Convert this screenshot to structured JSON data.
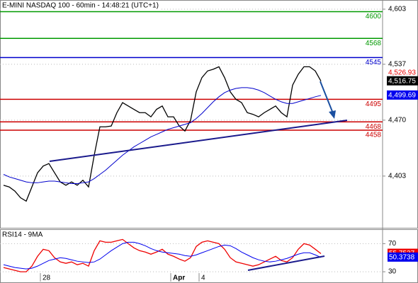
{
  "chart_data": [
    {
      "type": "line",
      "title": "E-MINI NASDAQ 100 - 60min - 14:48:21 (UTC+1)",
      "ylim": [
        4341,
        4614
      ],
      "yticks": [
        {
          "value": 4603,
          "label": "4,603"
        },
        {
          "value": 4537,
          "label": "4,537"
        },
        {
          "value": 4470,
          "label": "4,470"
        },
        {
          "value": 4403,
          "label": "4,403"
        }
      ],
      "grid": true,
      "series": [
        {
          "name": "E-MINI NASDAQ 100",
          "color": "#000000",
          "values": [
            4392,
            4390,
            4385,
            4377,
            4373,
            4390,
            4407,
            4415,
            4418,
            4407,
            4396,
            4392,
            4396,
            4392,
            4398,
            4390,
            4428,
            4462,
            4462,
            4463,
            4479,
            4491,
            4487,
            4483,
            4479,
            4479,
            4474,
            4483,
            4487,
            4474,
            4474,
            4463,
            4457,
            4470,
            4504,
            4521,
            4529,
            4531,
            4534,
            4521,
            4504,
            4495,
            4491,
            4479,
            4477,
            4474,
            4479,
            4483,
            4487,
            4479,
            4474,
            4512,
            4525,
            4534,
            4534,
            4529,
            4516.75
          ]
        },
        {
          "name": "MA",
          "color": "#0000cc",
          "values": [
            4405,
            4402,
            4400,
            4398,
            4396,
            4395,
            4395,
            4396,
            4397,
            4397,
            4396,
            4395,
            4394,
            4394,
            4395,
            4396,
            4400,
            4405,
            4410,
            4416,
            4422,
            4428,
            4433,
            4438,
            4442,
            4446,
            4450,
            4453,
            4456,
            4459,
            4461,
            4463,
            4465,
            4467,
            4472,
            4478,
            4485,
            4492,
            4498,
            4503,
            4506,
            4508,
            4509,
            4509,
            4508,
            4506,
            4503,
            4499,
            4495,
            4492,
            4490,
            4490,
            4492,
            4494,
            4496,
            4498,
            4499.69
          ]
        }
      ],
      "levels": [
        {
          "value": 4600,
          "color": "#009900"
        },
        {
          "value": 4568,
          "color": "#009900"
        },
        {
          "value": 4545,
          "color": "#0000cc"
        },
        {
          "value": 4495,
          "color": "#cc0000"
        },
        {
          "value": 4468,
          "color": "#cc0000"
        },
        {
          "value": 4458,
          "color": "#cc0000"
        }
      ],
      "markers": [
        {
          "value": 4526.93,
          "label": "4,526.93",
          "color": "#ee0000",
          "boxed": false
        },
        {
          "value": 4516.75,
          "label": "4,516.75",
          "color": "#000000",
          "boxed": true
        },
        {
          "value": 4499.69,
          "label": "4,499.69",
          "color": "#0000ee",
          "boxed": true
        }
      ]
    },
    {
      "type": "line",
      "title": "RSI14 - 9MA",
      "ylim": [
        16,
        90.5
      ],
      "yticks": [
        70,
        30
      ],
      "grid": true,
      "last_value_box": true,
      "categories": [
        null,
        null,
        null,
        null,
        null,
        null,
        null,
        "28",
        null,
        null,
        null,
        null,
        null,
        null,
        null,
        null,
        null,
        null,
        null,
        null,
        null,
        null,
        null,
        null,
        null,
        null,
        null,
        null,
        null,
        null,
        "Apr",
        null,
        null,
        null,
        null,
        "4",
        null,
        null,
        null,
        null,
        null,
        null,
        null,
        null,
        null,
        null,
        null,
        null,
        null,
        null,
        null,
        null,
        null,
        null,
        null,
        null,
        null
      ],
      "series": [
        {
          "name": "RSI14",
          "color": "#ee0000",
          "values": [
            36,
            34,
            32,
            30,
            30,
            38,
            52,
            62,
            60,
            50,
            44,
            42,
            44,
            40,
            42,
            38,
            60,
            74,
            72,
            72,
            74,
            76,
            70,
            64,
            60,
            58,
            55,
            58,
            62,
            55,
            52,
            48,
            45,
            50,
            66,
            72,
            74,
            72,
            70,
            62,
            50,
            44,
            42,
            40,
            38,
            40,
            44,
            48,
            52,
            46,
            44,
            50,
            62,
            70,
            68,
            62,
            55.7537
          ]
        },
        {
          "name": "9MA",
          "color": "#0000ee",
          "values": [
            40,
            38,
            36,
            35,
            34,
            35,
            38,
            42,
            46,
            48,
            50,
            49,
            47,
            45,
            44,
            43,
            44,
            48,
            54,
            60,
            65,
            70,
            72,
            72,
            70,
            67,
            63,
            60,
            58,
            57,
            56,
            55,
            53,
            52,
            54,
            57,
            60,
            63,
            66,
            68,
            67,
            63,
            58,
            54,
            50,
            47,
            45,
            44,
            45,
            47,
            49,
            52,
            55,
            57,
            57,
            54,
            50.3738
          ]
        }
      ]
    }
  ]
}
